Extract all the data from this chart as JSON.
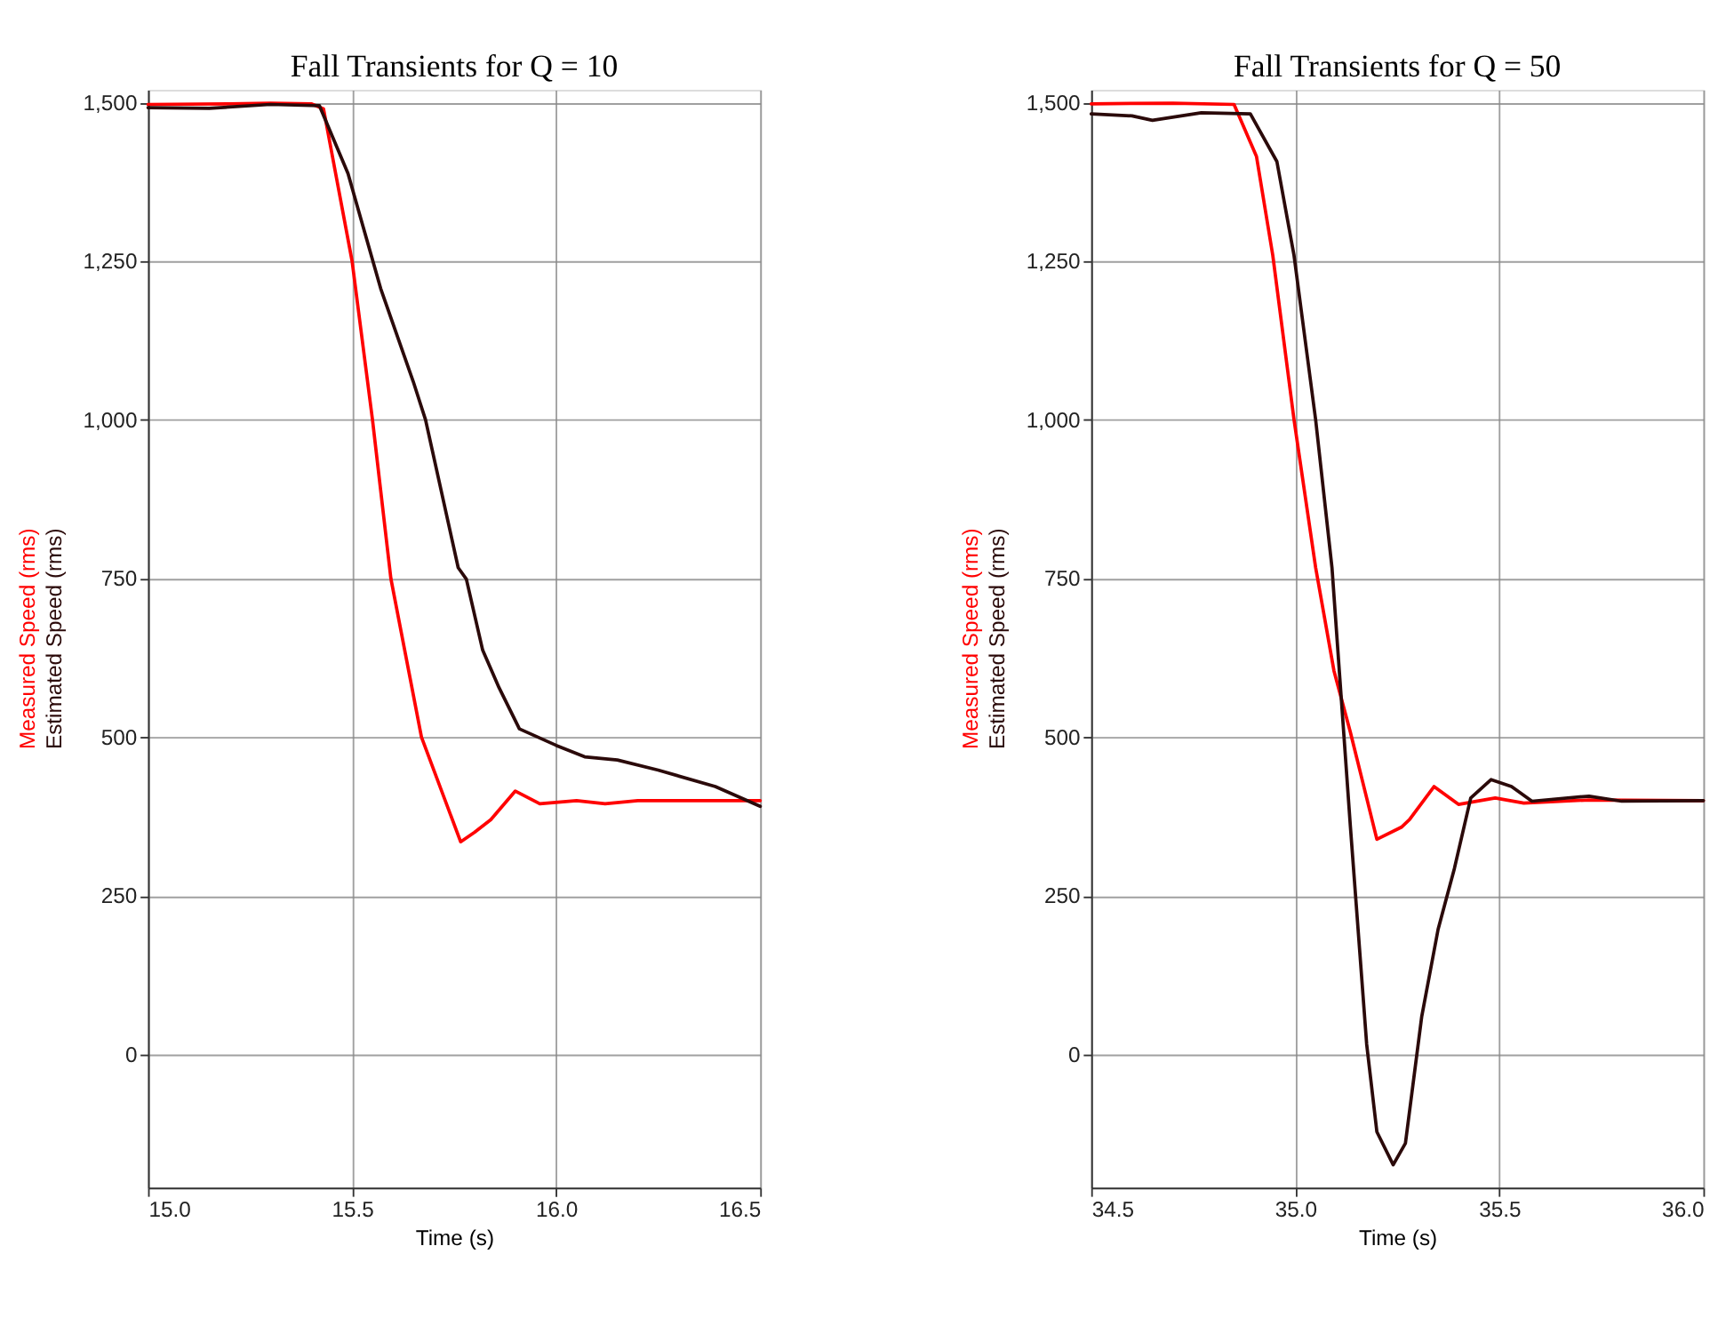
{
  "chart_data": [
    {
      "type": "line",
      "title": "Fall Transients for Q = 10",
      "xlabel": "Time (s)",
      "xlim": [
        15.0,
        16.5
      ],
      "xticks": [
        {
          "value": 15.0,
          "label": "15.0"
        },
        {
          "value": 15.5,
          "label": "15.5"
        },
        {
          "value": 16.0,
          "label": "16.0"
        },
        {
          "value": 16.5,
          "label": "16.5"
        }
      ],
      "ylim": [
        -210,
        1520
      ],
      "yticks": [
        {
          "value": 0,
          "label": "0"
        },
        {
          "value": 250,
          "label": "250"
        },
        {
          "value": 500,
          "label": "500"
        },
        {
          "value": 750,
          "label": "750"
        },
        {
          "value": 1000,
          "label": "1,000"
        },
        {
          "value": 1250,
          "label": "1,250"
        },
        {
          "value": 1500,
          "label": "1,500"
        }
      ],
      "grid": true,
      "legend": false,
      "series": [
        {
          "name": "Measured Speed (rms)",
          "color": "#ff0000",
          "x": [
            15.0,
            15.2,
            15.3,
            15.4,
            15.43,
            15.5,
            15.55,
            15.595,
            15.67,
            15.766,
            15.8,
            15.84,
            15.9,
            15.96,
            16.05,
            16.12,
            16.2,
            16.5
          ],
          "values": [
            1497,
            1498,
            1499,
            1498,
            1490,
            1250,
            1000,
            750,
            500,
            335,
            350,
            370,
            415,
            395,
            400,
            395,
            400,
            400
          ]
        },
        {
          "name": "Estimated Speed  (rms)",
          "color": "#2b0a0a",
          "x": [
            15.0,
            15.15,
            15.3,
            15.42,
            15.49,
            15.57,
            15.65,
            15.68,
            15.76,
            15.78,
            15.82,
            15.86,
            15.91,
            16.0,
            16.07,
            16.15,
            16.25,
            16.39,
            16.5
          ],
          "values": [
            1492,
            1491,
            1497,
            1495,
            1388,
            1207,
            1060,
            1000,
            767,
            749,
            637,
            578,
            513,
            487,
            469,
            464,
            448,
            422,
            391
          ]
        }
      ]
    },
    {
      "type": "line",
      "title": "Fall Transients for Q = 50",
      "xlabel": "Time (s)",
      "xlim": [
        34.5,
        36.0
      ],
      "xticks": [
        {
          "value": 34.5,
          "label": "34.5"
        },
        {
          "value": 35.0,
          "label": "35.0"
        },
        {
          "value": 35.5,
          "label": "35.5"
        },
        {
          "value": 36.0,
          "label": "36.0"
        }
      ],
      "ylim": [
        -210,
        1520
      ],
      "yticks": [
        {
          "value": 0,
          "label": "0"
        },
        {
          "value": 250,
          "label": "250"
        },
        {
          "value": 500,
          "label": "500"
        },
        {
          "value": 750,
          "label": "750"
        },
        {
          "value": 1000,
          "label": "1,000"
        },
        {
          "value": 1250,
          "label": "1,250"
        },
        {
          "value": 1500,
          "label": "1,500"
        }
      ],
      "grid": true,
      "legend": false,
      "series": [
        {
          "name": "Measured Speed (rms)",
          "color": "#ff0000",
          "x": [
            34.5,
            34.7,
            34.85,
            34.905,
            34.945,
            34.997,
            35.05,
            35.095,
            35.135,
            35.175,
            35.2,
            35.26,
            35.28,
            35.34,
            35.4,
            35.49,
            35.56,
            35.72,
            36.0
          ],
          "values": [
            1498,
            1499,
            1497,
            1415,
            1259,
            1000,
            767,
            604,
            508,
            404,
            339,
            358,
            370,
            422,
            394,
            404,
            396,
            401,
            400
          ]
        },
        {
          "name": "Estimated Speed  (rms)",
          "color": "#2b0a0a",
          "x": [
            34.5,
            34.6,
            34.65,
            34.77,
            34.89,
            34.955,
            34.997,
            35.05,
            35.09,
            35.135,
            35.175,
            35.2,
            35.24,
            35.27,
            35.31,
            35.35,
            35.39,
            35.43,
            35.48,
            35.53,
            35.58,
            35.72,
            35.8,
            36.0
          ],
          "values": [
            1482,
            1479,
            1472,
            1484,
            1482,
            1407,
            1259,
            1000,
            767,
            360,
            16,
            -122,
            -174,
            -140,
            60,
            197,
            293,
            404,
            433,
            422,
            399,
            407,
            399,
            400
          ]
        }
      ]
    }
  ]
}
